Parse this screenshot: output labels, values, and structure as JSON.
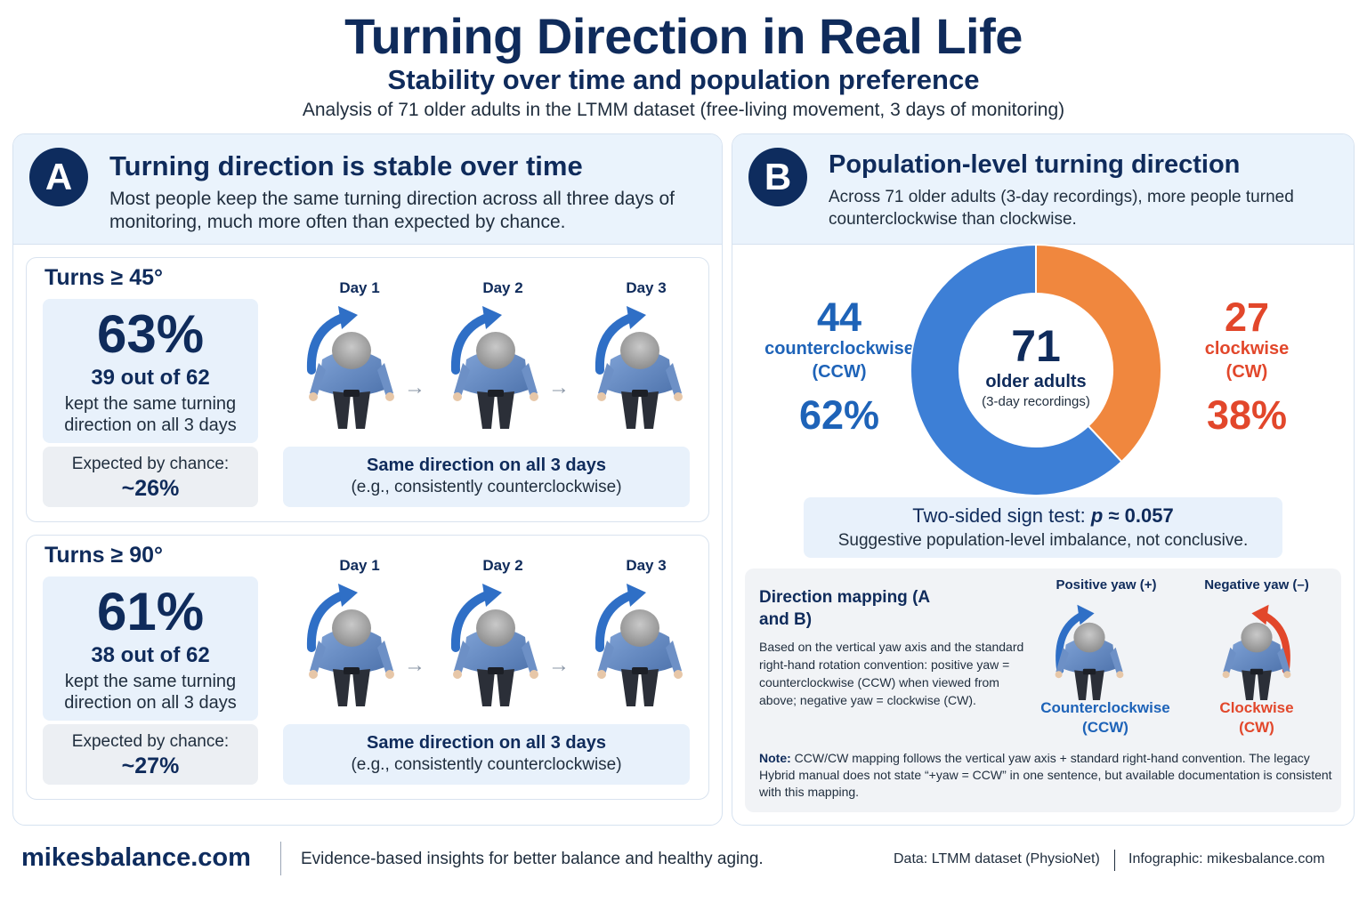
{
  "header": {
    "title": "Turning Direction in Real Life",
    "subtitle": "Stability over time and population preference",
    "analysis": "Analysis of 71 older adults in the LTMM dataset (free-living movement, 3 days of monitoring)"
  },
  "panel_a": {
    "badge": "A",
    "title": "Turning direction is stable over time",
    "description": "Most people keep the same turning direction across all three days of monitoring, much more often than expected by chance.",
    "cards": [
      {
        "title": "Turns ≥ 45°",
        "percent": "63%",
        "count": "39 out of 62",
        "kept": "kept the same turning direction on all 3 days",
        "chance_label": "Expected by chance:",
        "chance_value": "~26%",
        "days": [
          "Day 1",
          "Day 2",
          "Day 3"
        ],
        "same_title": "Same direction on all 3 days",
        "same_sub": "(e.g., consistently counterclockwise)"
      },
      {
        "title": "Turns ≥ 90°",
        "percent": "61%",
        "count": "38 out of 62",
        "kept": "kept the same turning direction on all 3 days",
        "chance_label": "Expected by chance:",
        "chance_value": "~27%",
        "days": [
          "Day 1",
          "Day 2",
          "Day 3"
        ],
        "same_title": "Same direction on all 3 days",
        "same_sub": "(e.g., consistently counterclockwise)"
      }
    ]
  },
  "panel_b": {
    "badge": "B",
    "title": "Population-level turning direction",
    "description": "Across 71 older adults (3-day recordings), more people turned counterclockwise than clockwise.",
    "ccw": {
      "count": "44",
      "label_line1": "counterclockwise",
      "label_line2": "(CCW)",
      "percent": "62%"
    },
    "cw": {
      "count": "27",
      "label_line1": "clockwise",
      "label_line2": "(CW)",
      "percent": "38%"
    },
    "center": {
      "number": "71",
      "label": "older adults",
      "sub": "(3-day recordings)"
    },
    "sign_test": {
      "label": "Two-sided sign test:",
      "p_symbol": "p",
      "p_value": "≈ 0.057",
      "conclusion": "Suggestive population-level imbalance, not conclusive."
    },
    "mapping": {
      "title": "Direction mapping (A and B)",
      "text": "Based on the vertical yaw axis and the standard right-hand rotation convention: positive yaw = counterclockwise (CCW) when viewed from above; negative yaw = clockwise (CW).",
      "positive_head": "Positive yaw (+)",
      "negative_head": "Negative yaw (–)",
      "ccw_name_line1": "Counterclockwise",
      "ccw_name_line2": "(CCW)",
      "cw_name_line1": "Clockwise",
      "cw_name_line2": "(CW)",
      "note_bold": "Note:",
      "note_text": " CCW/CW mapping follows the vertical yaw axis + standard right-hand convention. The legacy Hybrid manual does not state “+yaw = CCW” in one sentence, but available documentation is consistent with this mapping."
    }
  },
  "footer": {
    "brand": "mikesbalance.com",
    "tagline": "Evidence-based insights for better balance and healthy aging.",
    "data_source": "Data: LTMM dataset (PhysioNet)",
    "credit": "Infographic: mikesbalance.com"
  },
  "colors": {
    "navy": "#0f2b5b",
    "ccw_blue": "#3d7fd6",
    "cw_orange": "#f0873e",
    "ccw_text": "#1e63b8",
    "cw_text": "#e2472b"
  },
  "icons": {
    "person": "person-top-view-icon",
    "ccw_arrow": "counterclockwise-arrow-icon",
    "cw_arrow": "clockwise-arrow-icon",
    "flow": "right-arrow-icon"
  },
  "chart_data": [
    {
      "type": "pie",
      "categories": [
        "counterclockwise (CCW)",
        "clockwise (CW)"
      ],
      "values": [
        44,
        27
      ],
      "percentages": [
        62,
        38
      ],
      "total": 71,
      "colors": [
        "#3d7fd6",
        "#f0873e"
      ],
      "style": "donut"
    },
    {
      "type": "table",
      "rows": [
        {
          "threshold": "Turns ≥ 45°",
          "observed_percent": 63,
          "count": 39,
          "of": 62,
          "expected_by_chance_percent": 26
        },
        {
          "threshold": "Turns ≥ 90°",
          "observed_percent": 61,
          "count": 38,
          "of": 62,
          "expected_by_chance_percent": 27
        }
      ]
    }
  ]
}
